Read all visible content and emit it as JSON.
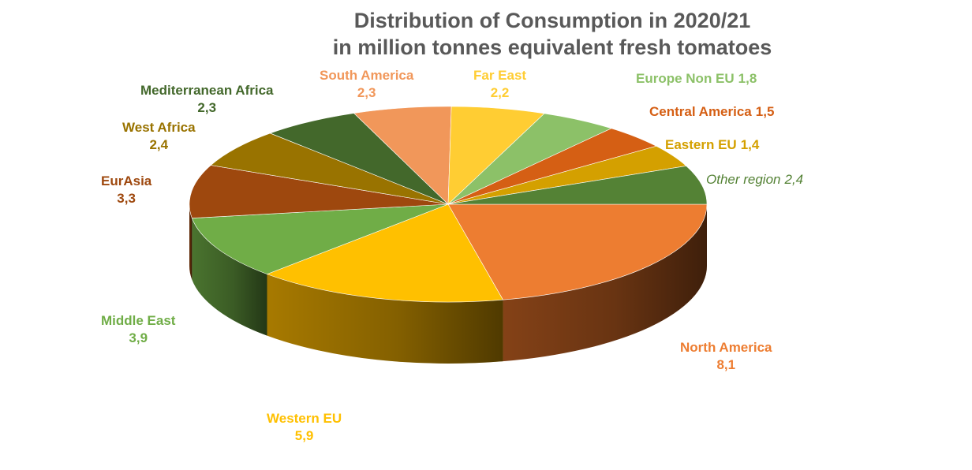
{
  "chart_data": {
    "type": "pie",
    "title": "Distribution of Consumption in 2020/21",
    "subtitle": "in million tonnes equivalent fresh tomatoes",
    "slices": [
      {
        "label": "North America",
        "value": "8,1",
        "amount": 8.1,
        "color": "#ED7D31",
        "side": "#8B4518"
      },
      {
        "label": "Western EU",
        "value": "5,9",
        "amount": 5.9,
        "color": "#FFC000",
        "side": "#B08000"
      },
      {
        "label": "Middle East",
        "value": "3,9",
        "amount": 3.9,
        "color": "#70AD47",
        "side": "#4E7A31"
      },
      {
        "label": "EurAsia",
        "value": "3,3",
        "amount": 3.3,
        "color": "#9E480E",
        "side": "#6C300A"
      },
      {
        "label": "West Africa",
        "value": "2,4",
        "amount": 2.4,
        "color": "#997300",
        "side": "#6A5000"
      },
      {
        "label": "Mediterranean Africa",
        "value": "2,3",
        "amount": 2.3,
        "color": "#43682B",
        "side": "#2E481E"
      },
      {
        "label": "South America",
        "value": "2,3",
        "amount": 2.3,
        "color": "#F1975A",
        "side": "#A8683E"
      },
      {
        "label": "Far East",
        "value": "2,2",
        "amount": 2.2,
        "color": "#FFCD33",
        "side": "#B39024"
      },
      {
        "label": "Europe Non EU",
        "value": "1,8",
        "amount": 1.8,
        "color": "#8CC168",
        "side": "#628748"
      },
      {
        "label": "Central America",
        "value": "1,5",
        "amount": 1.5,
        "color": "#D55F14",
        "side": "#95420E"
      },
      {
        "label": "Eastern EU",
        "value": "1,4",
        "amount": 1.4,
        "color": "#D4A000",
        "side": "#947000"
      },
      {
        "label": "Other region",
        "value": "2,4",
        "amount": 2.4,
        "color": "#548235",
        "side": "#3A5B25"
      }
    ]
  }
}
